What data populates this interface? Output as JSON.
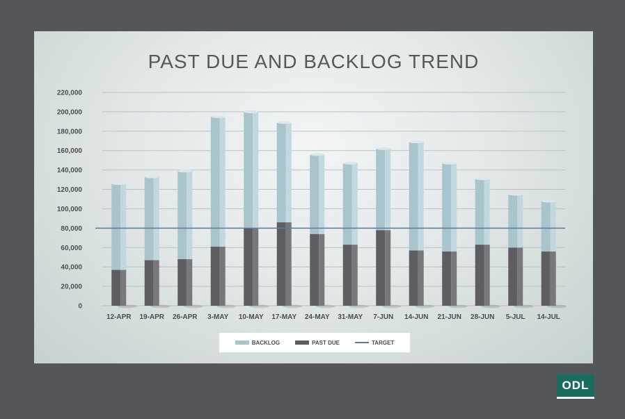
{
  "colors": {
    "background": "#54565a",
    "backlog": "#a9c4cc",
    "backlog_side": "#c3d8de",
    "past_due": "#5e5e62",
    "past_due_side": "#77777c",
    "target": "#5b7c99",
    "logo": "#1d6b5e"
  },
  "logo": {
    "text": "ODL"
  },
  "chart_data": {
    "type": "bar",
    "stacked": true,
    "title": "PAST DUE AND BACKLOG TREND",
    "xlabel": "",
    "ylabel": "",
    "ylim": [
      0,
      220000
    ],
    "yticks": [
      0,
      20000,
      40000,
      60000,
      80000,
      100000,
      120000,
      140000,
      160000,
      180000,
      200000,
      220000
    ],
    "ytick_labels": [
      "0",
      "20,000",
      "40,000",
      "60,000",
      "80,000",
      "100,000",
      "120,000",
      "140,000",
      "160,000",
      "180,000",
      "200,000",
      "220,000"
    ],
    "grid": true,
    "legend_position": "bottom-center",
    "categories": [
      "12-APR",
      "19-APR",
      "26-APR",
      "3-MAY",
      "10-MAY",
      "17-MAY",
      "24-MAY",
      "31-MAY",
      "7-JUN",
      "14-JUN",
      "21-JUN",
      "28-JUN",
      "5-JUL",
      "14-JUL"
    ],
    "series": [
      {
        "name": "PAST DUE",
        "values": [
          37000,
          47000,
          48000,
          61000,
          80000,
          86000,
          74000,
          63000,
          78000,
          57000,
          56000,
          63000,
          60000,
          56000
        ]
      },
      {
        "name": "BACKLOG",
        "values": [
          89000,
          86000,
          91000,
          134000,
          120000,
          103000,
          82000,
          84000,
          84000,
          112000,
          91000,
          68000,
          55000,
          52000
        ]
      }
    ],
    "target": {
      "name": "TARGET",
      "value": 80000
    }
  }
}
